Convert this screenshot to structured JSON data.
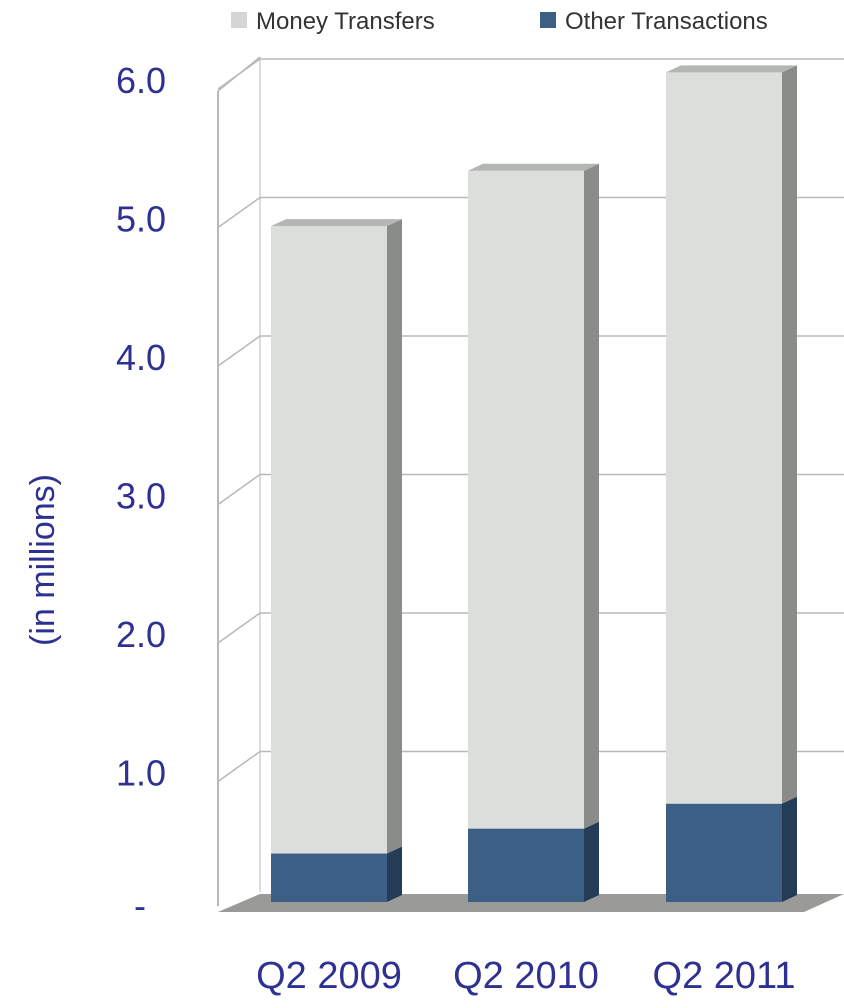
{
  "chart_data": {
    "type": "bar",
    "stacked": true,
    "categories": [
      "Q2 2009",
      "Q2 2010",
      "Q2 2011"
    ],
    "series": [
      {
        "name": "Other Transactions",
        "values": [
          0.35,
          0.53,
          0.71
        ],
        "color": "#3c5f86"
      },
      {
        "name": "Money Transfers",
        "values": [
          4.53,
          4.75,
          5.28
        ],
        "color": "#dcdedb"
      }
    ],
    "yticks": [
      "-",
      "1.0",
      "2.0",
      "3.0",
      "4.0",
      "5.0",
      "6.0"
    ],
    "ylabel": "(in millions)",
    "ylim": [
      0,
      6.0
    ],
    "grid": true,
    "legend_position": "top-right",
    "style": "3d"
  }
}
